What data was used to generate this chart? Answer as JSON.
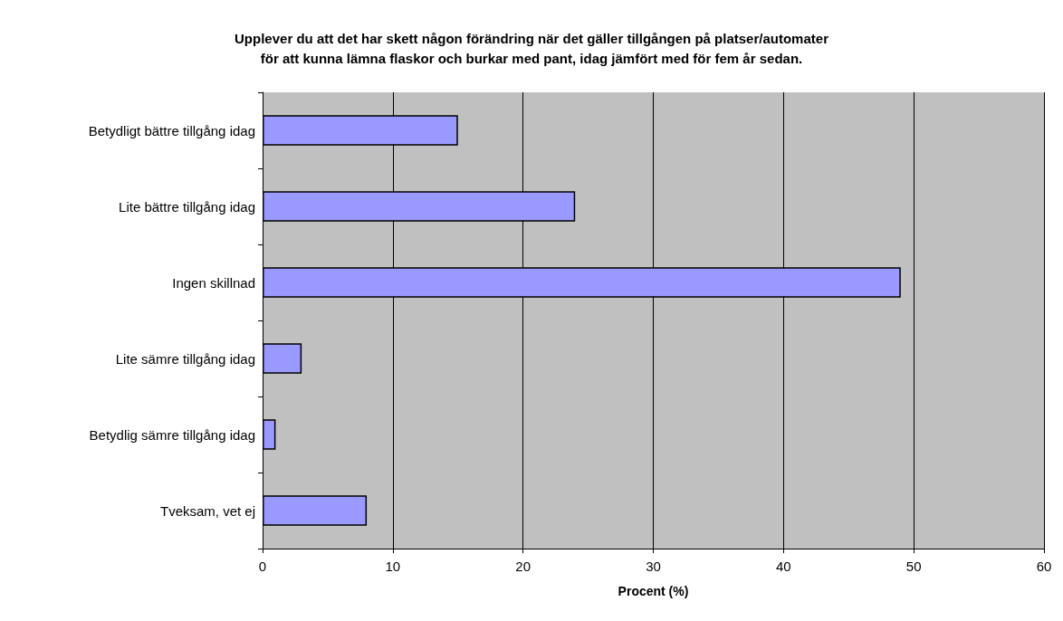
{
  "chart_data": {
    "type": "bar",
    "orientation": "horizontal",
    "title": "Upplever du att det har skett någon förändring när det gäller tillgången på platser/automater\nför att kunna lämna flaskor och burkar med pant, idag jämfört med för fem år sedan.",
    "xlabel": "Procent (%)",
    "categories": [
      "Betydligt bättre tillgång idag",
      "Lite bättre tillgång idag",
      "Ingen skillnad",
      "Lite sämre tillgång idag",
      "Betydlig sämre tillgång idag",
      "Tveksam, vet ej"
    ],
    "values": [
      15,
      24,
      49,
      3,
      1,
      8
    ],
    "color": "#9999ff",
    "xlim": [
      0,
      60
    ],
    "xticks": [
      0,
      10,
      20,
      30,
      40,
      50,
      60
    ],
    "grid": "x"
  }
}
